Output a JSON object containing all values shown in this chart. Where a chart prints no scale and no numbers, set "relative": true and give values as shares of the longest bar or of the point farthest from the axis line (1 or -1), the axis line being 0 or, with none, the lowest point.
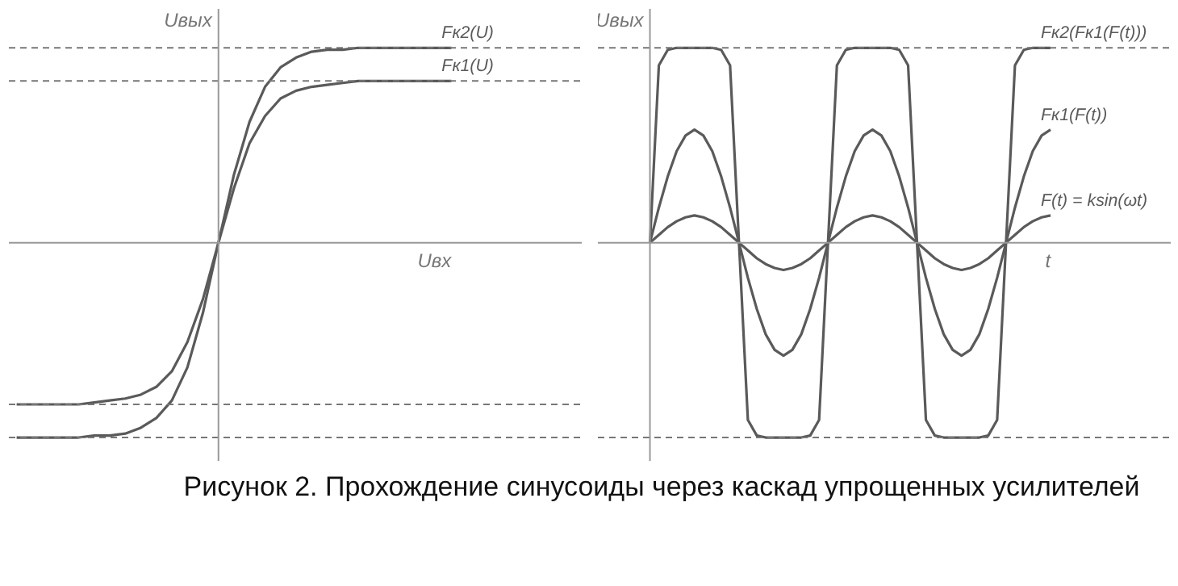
{
  "chart_data": [
    {
      "type": "line",
      "relative": true,
      "xlabel": "Uвх",
      "ylabel": "Uвых",
      "grid": false,
      "categories": [
        null,
        null,
        null,
        null,
        null,
        null,
        null,
        null,
        null,
        null,
        null,
        null,
        null,
        null,
        null,
        null,
        null,
        null,
        null,
        null,
        null,
        null,
        null,
        null,
        null,
        null,
        null,
        null,
        null
      ],
      "series": [
        {
          "name": "Fк2(U)",
          "color": "#5a5a5a",
          "values": [
            -1,
            -1,
            -1,
            -1,
            -1,
            -0.99,
            -0.99,
            -0.98,
            -0.95,
            -0.9,
            -0.81,
            -0.64,
            -0.36,
            0,
            0.35,
            0.62,
            0.8,
            0.9,
            0.95,
            0.98,
            0.99,
            0.99,
            1,
            1,
            1,
            1,
            1,
            1,
            1
          ]
        },
        {
          "name": "Fк1(U)",
          "color": "#5a5a5a",
          "values": [
            -0.83,
            -0.83,
            -0.83,
            -0.83,
            -0.83,
            -0.82,
            -0.81,
            -0.8,
            -0.78,
            -0.74,
            -0.66,
            -0.51,
            -0.29,
            0,
            0.28,
            0.51,
            0.65,
            0.74,
            0.78,
            0.8,
            0.81,
            0.82,
            0.83,
            0.83,
            0.83,
            0.83,
            0.83,
            0.83,
            0.83
          ]
        }
      ],
      "ref_lines": [
        {
          "axis": "y",
          "value": 1,
          "label": null,
          "color": "#777777",
          "line_style": "dashed"
        },
        {
          "axis": "y",
          "value": 0.83,
          "label": null,
          "color": "#777777",
          "line_style": "dashed"
        },
        {
          "axis": "y",
          "value": -1,
          "label": null,
          "color": "#777777",
          "line_style": "dashed"
        },
        {
          "axis": "y",
          "value": -0.83,
          "label": null,
          "color": "#777777",
          "line_style": "dashed"
        }
      ],
      "annotations": [
        "Рисунок 2. Прохождение синусоиды через каскад упрощенных усилителей"
      ]
    },
    {
      "type": "line",
      "relative": true,
      "xlabel": "t",
      "ylabel": "Uвых",
      "grid": false,
      "categories": [
        null,
        null,
        null,
        null,
        null,
        null,
        null,
        null,
        null,
        null,
        null,
        null,
        null,
        null,
        null,
        null,
        null,
        null,
        null,
        null,
        null,
        null,
        null,
        null,
        null,
        null,
        null,
        null,
        null,
        null,
        null,
        null,
        null,
        null,
        null,
        null,
        null,
        null,
        null,
        null,
        null,
        null,
        null,
        null,
        null,
        null
      ],
      "series": [
        {
          "name": "Fк2(Fк1(F(t)))",
          "color": "#5a5a5a",
          "values": [
            0,
            0.91,
            0.99,
            1,
            1,
            1,
            1,
            1,
            0.99,
            0.91,
            0,
            -0.91,
            -0.99,
            -1,
            -1,
            -1,
            -1,
            -1,
            -0.99,
            -0.91,
            0,
            0.91,
            0.99,
            1,
            1,
            1,
            1,
            1,
            0.99,
            0.91,
            0,
            -0.91,
            -0.99,
            -1,
            -1,
            -1,
            -1,
            -1,
            -0.99,
            -0.91,
            0,
            0.91,
            0.99,
            1,
            1,
            1
          ]
        },
        {
          "name": "Fк1(F(t))",
          "color": "#5a5a5a",
          "values": [
            0,
            0.18,
            0.34,
            0.47,
            0.55,
            0.58,
            0.55,
            0.47,
            0.34,
            0.18,
            0,
            -0.18,
            -0.34,
            -0.47,
            -0.55,
            -0.58,
            -0.55,
            -0.47,
            -0.34,
            -0.18,
            0,
            0.18,
            0.34,
            0.47,
            0.55,
            0.58,
            0.55,
            0.47,
            0.34,
            0.18,
            0,
            -0.18,
            -0.34,
            -0.47,
            -0.55,
            -0.58,
            -0.55,
            -0.47,
            -0.34,
            -0.18,
            0,
            0.18,
            0.34,
            0.47,
            0.55,
            0.58
          ]
        },
        {
          "name": "F(t) = ksin(ωt)",
          "color": "#5a5a5a",
          "values": [
            0,
            0.04,
            0.08,
            0.11,
            0.13,
            0.14,
            0.13,
            0.11,
            0.08,
            0.04,
            0,
            -0.04,
            -0.08,
            -0.11,
            -0.13,
            -0.14,
            -0.13,
            -0.11,
            -0.08,
            -0.04,
            0,
            0.04,
            0.08,
            0.11,
            0.13,
            0.14,
            0.13,
            0.11,
            0.08,
            0.04,
            0,
            -0.04,
            -0.08,
            -0.11,
            -0.13,
            -0.14,
            -0.13,
            -0.11,
            -0.08,
            -0.04,
            0,
            0.04,
            0.08,
            0.11,
            0.13,
            0.14
          ]
        }
      ],
      "ref_lines": [
        {
          "axis": "y",
          "value": 1,
          "label": null,
          "color": "#777777",
          "line_style": "dashed"
        },
        {
          "axis": "y",
          "value": -1,
          "label": null,
          "color": "#777777",
          "line_style": "dashed"
        }
      ]
    }
  ]
}
